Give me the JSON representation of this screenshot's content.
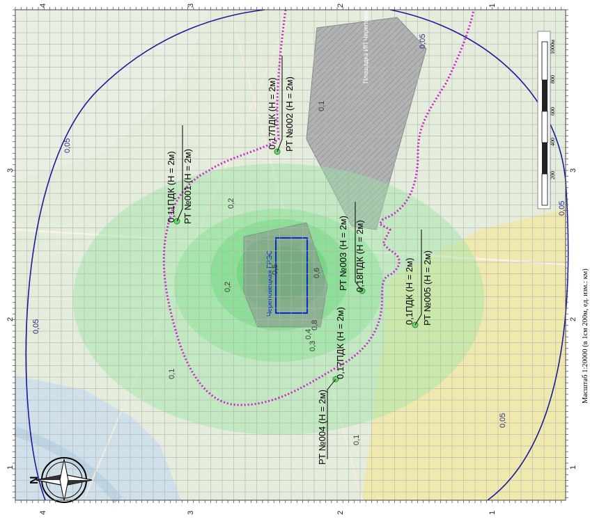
{
  "scale_caption": "Масштаб 1:20000 (в 1см 200м, ед. изм.: км)",
  "north_label": "N",
  "scalebar": {
    "ticks": [
      "200",
      "400",
      "600",
      "800",
      "1000м"
    ]
  },
  "frame": {
    "top_labels": [
      "4",
      "3",
      "2",
      "1"
    ],
    "bottom_labels": [
      "4",
      "3",
      "2",
      "1"
    ],
    "left_labels": [
      "1",
      "2",
      "3"
    ],
    "right_labels": [
      "1",
      "2",
      "3"
    ]
  },
  "map_labels": {
    "facility": "Череповецкая ГРЭС",
    "area": "Площадка ИП Череповецкий"
  },
  "receptors": [
    {
      "id": "rt001",
      "name": "РТ №001 (Н = 2м)",
      "value": "0,11ПДК (Н = 2м)"
    },
    {
      "id": "rt002",
      "name": "РТ №002 (Н = 2м)",
      "value": "0,17ПДК (Н = 2м)"
    },
    {
      "id": "rt003",
      "name": "РТ №003 (Н = 2м)",
      "value": "0,18ПДК (Н = 2м)"
    },
    {
      "id": "rt004",
      "name": "РТ №004 (Н = 2м)",
      "value": "0,17ПДК (Н = 2м)"
    },
    {
      "id": "rt005",
      "name": "РТ №005 (Н = 2м)",
      "value": "0,1ПДК (Н = 2м)"
    }
  ],
  "contour_labels": [
    "0,8",
    "0,6",
    "0,5",
    "0,4",
    "0,3",
    "0,2",
    "0,2",
    "0,1",
    "0,1",
    "0,1"
  ],
  "outer_contour_labels": [
    "0,05",
    "0,05",
    "0,05",
    "0,05",
    "0,05"
  ],
  "colors": {
    "outer_isoline": "#1a1a9a",
    "sanitary_zone": "#cc22cc",
    "source_rect": "#0a2ad0",
    "plume": "#7fe08a",
    "grid": "#b4b4b4",
    "map_bg": "#dfe9d8",
    "urban_zone": "#efe7a0",
    "industrial_zone": "#9a9a9a"
  }
}
